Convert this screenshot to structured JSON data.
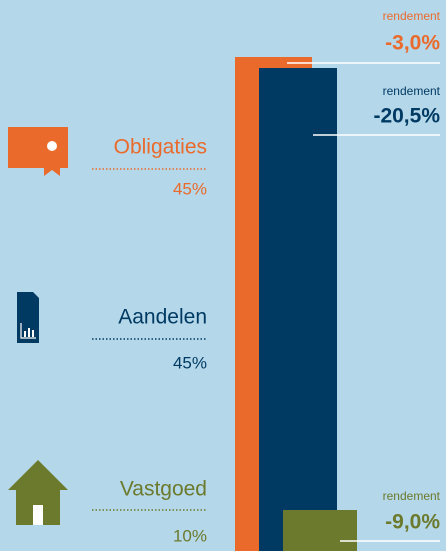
{
  "items": [
    {
      "label": "Obligaties",
      "share": "45%",
      "return_label": "rendement",
      "return": "-3,0%"
    },
    {
      "label": "Aandelen",
      "share": "45%",
      "return_label": "rendement",
      "return": "-20,5%"
    },
    {
      "label": "Vastgoed",
      "share": "10%",
      "return_label": "rendement",
      "return": "-9,0%"
    }
  ]
}
